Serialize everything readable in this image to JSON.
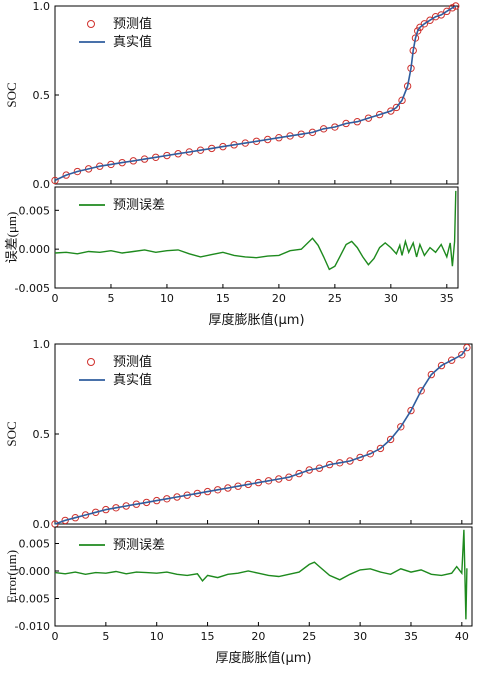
{
  "colors": {
    "marker": "#d0312d",
    "true_line": "#2f5d9e",
    "error_line": "#1e8a1e",
    "axis": "#000000"
  },
  "chart_data": [
    {
      "type": "line",
      "panel": "top-soc",
      "xlabel": "",
      "ylabel": "SOC",
      "xlim": [
        0,
        36
      ],
      "ylim": [
        0.0,
        1.0
      ],
      "yticks": [
        "0.0",
        "0.5",
        "1.0"
      ],
      "legend": {
        "position": "top-left",
        "entries": [
          "预测值",
          "真实值"
        ]
      },
      "series": [
        {
          "name": "预测值",
          "style": "circle-markers",
          "x": [
            0,
            1,
            2,
            3,
            4,
            5,
            6,
            7,
            8,
            9,
            10,
            11,
            12,
            13,
            14,
            15,
            16,
            17,
            18,
            19,
            20,
            21,
            22,
            23,
            24,
            25,
            26,
            27,
            28,
            29,
            30,
            30.5,
            31,
            31.5,
            31.8,
            32,
            32.2,
            32.4,
            32.6,
            33,
            33.5,
            34,
            34.5,
            35,
            35.5,
            35.8
          ],
          "y": [
            0.02,
            0.05,
            0.07,
            0.085,
            0.1,
            0.11,
            0.12,
            0.13,
            0.14,
            0.15,
            0.16,
            0.17,
            0.18,
            0.19,
            0.2,
            0.21,
            0.22,
            0.23,
            0.24,
            0.25,
            0.26,
            0.27,
            0.28,
            0.29,
            0.31,
            0.32,
            0.34,
            0.35,
            0.37,
            0.39,
            0.41,
            0.43,
            0.47,
            0.55,
            0.65,
            0.75,
            0.82,
            0.86,
            0.88,
            0.9,
            0.92,
            0.94,
            0.95,
            0.97,
            0.99,
            1.0
          ]
        },
        {
          "name": "真实值",
          "style": "line",
          "x": [
            0,
            1,
            2,
            3,
            4,
            5,
            6,
            7,
            8,
            9,
            10,
            11,
            12,
            13,
            14,
            15,
            16,
            17,
            18,
            19,
            20,
            21,
            22,
            23,
            24,
            25,
            26,
            27,
            28,
            29,
            30,
            30.5,
            31,
            31.5,
            31.8,
            32,
            32.2,
            32.4,
            32.6,
            33,
            33.5,
            34,
            34.5,
            35,
            35.5,
            35.8
          ],
          "y": [
            0.02,
            0.05,
            0.07,
            0.085,
            0.1,
            0.11,
            0.12,
            0.13,
            0.14,
            0.15,
            0.16,
            0.17,
            0.18,
            0.19,
            0.2,
            0.21,
            0.22,
            0.23,
            0.24,
            0.25,
            0.26,
            0.27,
            0.28,
            0.29,
            0.31,
            0.32,
            0.34,
            0.35,
            0.37,
            0.39,
            0.41,
            0.43,
            0.47,
            0.55,
            0.65,
            0.75,
            0.82,
            0.86,
            0.88,
            0.9,
            0.92,
            0.94,
            0.95,
            0.97,
            0.99,
            1.0
          ]
        }
      ]
    },
    {
      "type": "line",
      "panel": "top-error",
      "xlabel": "厚度膨胀值(μm)",
      "ylabel": "误差(μm)",
      "xlim": [
        0,
        36
      ],
      "ylim": [
        -0.005,
        0.008
      ],
      "xticks": [
        "0",
        "5",
        "10",
        "15",
        "20",
        "25",
        "30",
        "35"
      ],
      "yticks": [
        "0.005",
        "0.000",
        "-0.005"
      ],
      "legend": {
        "position": "top-left",
        "entries": [
          "预测误差"
        ]
      },
      "series": [
        {
          "name": "预测误差",
          "x": [
            0,
            1,
            2,
            3,
            4,
            5,
            6,
            7,
            8,
            9,
            10,
            11,
            12,
            13,
            14,
            15,
            16,
            17,
            18,
            19,
            20,
            21,
            22,
            23,
            23.5,
            24,
            24.5,
            25,
            25.5,
            26,
            26.5,
            27,
            27.5,
            28,
            28.5,
            29,
            29.5,
            30,
            30.5,
            30.8,
            31,
            31.3,
            31.6,
            32,
            32.3,
            32.6,
            33,
            33.5,
            34,
            34.5,
            35,
            35.3,
            35.5,
            35.7,
            35.8
          ],
          "y": [
            -0.0005,
            -0.0004,
            -0.0006,
            -0.0003,
            -0.0004,
            -0.0002,
            -0.0005,
            -0.0003,
            -0.0001,
            -0.0004,
            -0.0002,
            -0.0001,
            -0.0006,
            -0.001,
            -0.0007,
            -0.0004,
            -0.0008,
            -0.001,
            -0.0011,
            -0.0009,
            -0.0008,
            -0.0002,
            0.0,
            0.0014,
            0.0005,
            -0.001,
            -0.0026,
            -0.0022,
            -0.0008,
            0.0006,
            0.001,
            0.0002,
            -0.001,
            -0.002,
            -0.0012,
            0.0002,
            0.0008,
            0.0002,
            -0.0006,
            0.0005,
            -0.0008,
            0.001,
            -0.0004,
            0.0008,
            -0.001,
            0.0006,
            -0.0008,
            0.0002,
            -0.0004,
            0.0006,
            -0.001,
            0.0008,
            -0.0022,
            0.001,
            0.0075
          ]
        }
      ]
    },
    {
      "type": "line",
      "panel": "bottom-soc",
      "xlabel": "",
      "ylabel": "SOC",
      "xlim": [
        0,
        41
      ],
      "ylim": [
        0.0,
        1.0
      ],
      "yticks": [
        "0.0",
        "0.5",
        "1.0"
      ],
      "legend": {
        "position": "top-left",
        "entries": [
          "预测值",
          "真实值"
        ]
      },
      "series": [
        {
          "name": "预测值",
          "style": "circle-markers",
          "x": [
            0,
            1,
            2,
            3,
            4,
            5,
            6,
            7,
            8,
            9,
            10,
            11,
            12,
            13,
            14,
            15,
            16,
            17,
            18,
            19,
            20,
            21,
            22,
            23,
            24,
            25,
            26,
            27,
            28,
            29,
            30,
            31,
            32,
            33,
            34,
            35,
            36,
            37,
            38,
            39,
            40,
            40.5
          ],
          "y": [
            0.0,
            0.02,
            0.035,
            0.05,
            0.065,
            0.08,
            0.09,
            0.1,
            0.11,
            0.12,
            0.13,
            0.14,
            0.15,
            0.16,
            0.17,
            0.18,
            0.19,
            0.2,
            0.21,
            0.22,
            0.23,
            0.24,
            0.25,
            0.26,
            0.28,
            0.3,
            0.31,
            0.33,
            0.34,
            0.35,
            0.37,
            0.39,
            0.42,
            0.47,
            0.54,
            0.63,
            0.74,
            0.83,
            0.88,
            0.91,
            0.94,
            0.98
          ]
        },
        {
          "name": "真实值",
          "style": "line",
          "x": [
            0,
            1,
            2,
            3,
            4,
            5,
            6,
            7,
            8,
            9,
            10,
            11,
            12,
            13,
            14,
            15,
            16,
            17,
            18,
            19,
            20,
            21,
            22,
            23,
            24,
            25,
            26,
            27,
            28,
            29,
            30,
            31,
            32,
            33,
            34,
            35,
            36,
            37,
            38,
            39,
            40,
            40.5
          ],
          "y": [
            0.0,
            0.02,
            0.035,
            0.05,
            0.065,
            0.08,
            0.09,
            0.1,
            0.11,
            0.12,
            0.13,
            0.14,
            0.15,
            0.16,
            0.17,
            0.18,
            0.19,
            0.2,
            0.21,
            0.22,
            0.23,
            0.24,
            0.25,
            0.26,
            0.28,
            0.3,
            0.31,
            0.33,
            0.34,
            0.35,
            0.37,
            0.39,
            0.42,
            0.47,
            0.54,
            0.63,
            0.74,
            0.83,
            0.88,
            0.91,
            0.94,
            0.98
          ]
        }
      ]
    },
    {
      "type": "line",
      "panel": "bottom-error",
      "xlabel": "厚度膨胀值(μm)",
      "ylabel": "Error(μm)",
      "xlim": [
        0,
        41
      ],
      "ylim": [
        -0.01,
        0.008
      ],
      "xticks": [
        "0",
        "5",
        "10",
        "15",
        "20",
        "25",
        "30",
        "35",
        "40"
      ],
      "yticks": [
        "0.005",
        "0.000",
        "-0.005",
        "-0.010"
      ],
      "legend": {
        "position": "top-left",
        "entries": [
          "预测误差"
        ]
      },
      "series": [
        {
          "name": "预测误差",
          "x": [
            0,
            1,
            2,
            3,
            4,
            5,
            6,
            7,
            8,
            9,
            10,
            11,
            12,
            13,
            14,
            14.5,
            15,
            16,
            17,
            18,
            19,
            20,
            21,
            22,
            23,
            24,
            25,
            25.5,
            26,
            27,
            28,
            29,
            30,
            31,
            32,
            33,
            34,
            35,
            36,
            37,
            38,
            39,
            39.5,
            40,
            40.2,
            40.4,
            40.5
          ],
          "y": [
            -0.0003,
            -0.0005,
            -0.0002,
            -0.0006,
            -0.0003,
            -0.0004,
            -0.0001,
            -0.0005,
            -0.0002,
            -0.0003,
            -0.0004,
            -0.0002,
            -0.0006,
            -0.0008,
            -0.0005,
            -0.0018,
            -0.0008,
            -0.0012,
            -0.0006,
            -0.0004,
            0.0,
            -0.0004,
            -0.0008,
            -0.001,
            -0.0006,
            -0.0002,
            0.0012,
            0.0016,
            0.0008,
            -0.0008,
            -0.0016,
            -0.0006,
            0.0002,
            0.0004,
            -0.0002,
            -0.0006,
            0.0004,
            -0.0002,
            0.0002,
            -0.0006,
            -0.0008,
            -0.0004,
            0.0008,
            -0.0004,
            0.0075,
            -0.0088,
            0.0005
          ]
        }
      ]
    }
  ]
}
